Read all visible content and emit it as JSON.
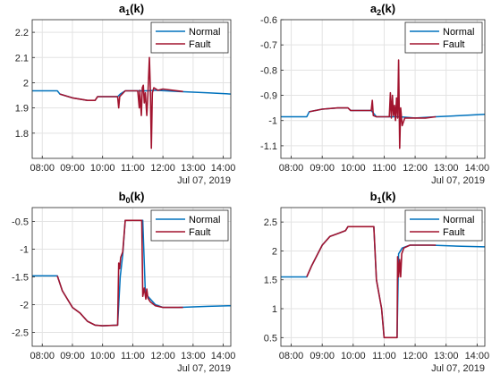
{
  "chart_data": [
    {
      "type": "line",
      "title_main": "a",
      "title_sub": "1",
      "title_rest": "(k)",
      "xticks": [
        "08:00",
        "09:00",
        "10:00",
        "11:00",
        "12:00",
        "13:00",
        "14:00"
      ],
      "xlabel": "Jul 07, 2019",
      "yticks": [
        "1.8",
        "1.9",
        "2",
        "2.1",
        "2.2"
      ],
      "ytick_values": [
        1.8,
        1.9,
        2.0,
        2.1,
        2.2
      ],
      "xlim": [
        "07:40",
        "14:15"
      ],
      "ylim": [
        1.7,
        2.25
      ],
      "grid": true,
      "legend_position": "top-right",
      "series": [
        {
          "name": "Normal",
          "color": "#0072BD",
          "points": [
            [
              "07:40",
              1.968
            ],
            [
              "08:30",
              1.968
            ],
            [
              "08:35",
              1.955
            ],
            [
              "09:00",
              1.94
            ],
            [
              "09:30",
              1.93
            ],
            [
              "09:45",
              1.93
            ],
            [
              "09:50",
              1.945
            ],
            [
              "10:30",
              1.945
            ],
            [
              "10:35",
              1.955
            ],
            [
              "10:45",
              1.968
            ],
            [
              "11:30",
              1.968
            ],
            [
              "11:45",
              1.97
            ],
            [
              "12:30",
              1.965
            ],
            [
              "13:30",
              1.96
            ],
            [
              "14:15",
              1.955
            ]
          ]
        },
        {
          "name": "Fault",
          "color": "#A2142F",
          "points": [
            [
              "08:35",
              1.955
            ],
            [
              "09:00",
              1.94
            ],
            [
              "09:30",
              1.93
            ],
            [
              "09:45",
              1.93
            ],
            [
              "09:50",
              1.945
            ],
            [
              "10:30",
              1.945
            ],
            [
              "10:32",
              1.9
            ],
            [
              "10:34",
              1.945
            ],
            [
              "10:45",
              1.968
            ],
            [
              "11:10",
              1.968
            ],
            [
              "11:13",
              1.9
            ],
            [
              "11:14",
              1.97
            ],
            [
              "11:17",
              1.87
            ],
            [
              "11:19",
              1.98
            ],
            [
              "11:21",
              1.99
            ],
            [
              "11:23",
              1.92
            ],
            [
              "11:25",
              1.96
            ],
            [
              "11:28",
              1.87
            ],
            [
              "11:30",
              1.95
            ],
            [
              "11:33",
              2.1
            ],
            [
              "11:35",
              1.97
            ],
            [
              "11:37",
              1.74
            ],
            [
              "11:39",
              1.96
            ],
            [
              "11:42",
              1.98
            ],
            [
              "11:50",
              1.97
            ],
            [
              "12:00",
              1.975
            ],
            [
              "12:20",
              1.97
            ],
            [
              "12:40",
              1.965
            ]
          ]
        }
      ]
    },
    {
      "type": "line",
      "title_main": "a",
      "title_sub": "2",
      "title_rest": "(k)",
      "xticks": [
        "08:00",
        "09:00",
        "10:00",
        "11:00",
        "12:00",
        "13:00",
        "14:00"
      ],
      "xlabel": "Jul 07, 2019",
      "yticks": [
        "-1.1",
        "-1",
        "-0.9",
        "-0.8",
        "-0.7",
        "-0.6"
      ],
      "ytick_values": [
        -1.1,
        -1.0,
        -0.9,
        -0.8,
        -0.7,
        -0.6
      ],
      "xlim": [
        "07:40",
        "14:15"
      ],
      "ylim": [
        -1.15,
        -0.6
      ],
      "grid": true,
      "legend_position": "top-right",
      "series": [
        {
          "name": "Normal",
          "color": "#0072BD",
          "points": [
            [
              "07:40",
              -0.985
            ],
            [
              "08:30",
              -0.985
            ],
            [
              "08:35",
              -0.965
            ],
            [
              "09:00",
              -0.955
            ],
            [
              "09:30",
              -0.95
            ],
            [
              "09:50",
              -0.95
            ],
            [
              "09:55",
              -0.96
            ],
            [
              "10:35",
              -0.96
            ],
            [
              "10:45",
              -0.985
            ],
            [
              "11:30",
              -0.985
            ],
            [
              "12:00",
              -0.99
            ],
            [
              "12:40",
              -0.985
            ],
            [
              "13:30",
              -0.98
            ],
            [
              "14:15",
              -0.975
            ]
          ]
        },
        {
          "name": "Fault",
          "color": "#A2142F",
          "points": [
            [
              "08:35",
              -0.965
            ],
            [
              "09:00",
              -0.955
            ],
            [
              "09:30",
              -0.95
            ],
            [
              "09:50",
              -0.95
            ],
            [
              "09:55",
              -0.96
            ],
            [
              "10:35",
              -0.96
            ],
            [
              "10:37",
              -0.92
            ],
            [
              "10:39",
              -0.98
            ],
            [
              "10:45",
              -0.985
            ],
            [
              "11:10",
              -0.985
            ],
            [
              "11:12",
              -0.89
            ],
            [
              "11:14",
              -0.99
            ],
            [
              "11:16",
              -0.9
            ],
            [
              "11:18",
              -0.98
            ],
            [
              "11:20",
              -0.94
            ],
            [
              "11:22",
              -1.0
            ],
            [
              "11:24",
              -0.91
            ],
            [
              "11:26",
              -0.99
            ],
            [
              "11:28",
              -0.76
            ],
            [
              "11:30",
              -1.11
            ],
            [
              "11:32",
              -0.95
            ],
            [
              "11:35",
              -1.02
            ],
            [
              "11:40",
              -0.99
            ],
            [
              "12:00",
              -0.99
            ],
            [
              "12:20",
              -0.99
            ],
            [
              "12:40",
              -0.985
            ]
          ]
        }
      ]
    },
    {
      "type": "line",
      "title_main": "b",
      "title_sub": "0",
      "title_rest": "(k)",
      "xticks": [
        "08:00",
        "09:00",
        "10:00",
        "11:00",
        "12:00",
        "13:00",
        "14:00"
      ],
      "xlabel": "Jul 07, 2019",
      "yticks": [
        "-2.5",
        "-2",
        "-1.5",
        "-1",
        "-0.5"
      ],
      "ytick_values": [
        -2.5,
        -2.0,
        -1.5,
        -1.0,
        -0.5
      ],
      "xlim": [
        "07:40",
        "14:15"
      ],
      "ylim": [
        -2.75,
        -0.25
      ],
      "grid": true,
      "legend_position": "top-right",
      "series": [
        {
          "name": "Normal",
          "color": "#0072BD",
          "points": [
            [
              "07:40",
              -1.48
            ],
            [
              "08:30",
              -1.48
            ],
            [
              "08:40",
              -1.75
            ],
            [
              "09:00",
              -2.05
            ],
            [
              "09:15",
              -2.15
            ],
            [
              "09:30",
              -2.3
            ],
            [
              "09:45",
              -2.37
            ],
            [
              "10:00",
              -2.38
            ],
            [
              "10:30",
              -2.37
            ],
            [
              "10:35",
              -1.5
            ],
            [
              "10:40",
              -1.1
            ],
            [
              "10:45",
              -0.48
            ],
            [
              "11:20",
              -0.48
            ],
            [
              "11:25",
              -1.8
            ],
            [
              "11:35",
              -1.9
            ],
            [
              "11:45",
              -2.0
            ],
            [
              "12:00",
              -2.05
            ],
            [
              "12:30",
              -2.05
            ],
            [
              "13:00",
              -2.04
            ],
            [
              "13:30",
              -2.03
            ],
            [
              "14:15",
              -2.02
            ]
          ]
        },
        {
          "name": "Fault",
          "color": "#A2142F",
          "points": [
            [
              "08:30",
              -1.48
            ],
            [
              "08:40",
              -1.75
            ],
            [
              "09:00",
              -2.05
            ],
            [
              "09:15",
              -2.15
            ],
            [
              "09:30",
              -2.3
            ],
            [
              "09:45",
              -2.37
            ],
            [
              "10:00",
              -2.38
            ],
            [
              "10:30",
              -2.37
            ],
            [
              "10:32",
              -1.25
            ],
            [
              "10:34",
              -1.35
            ],
            [
              "10:36",
              -1.15
            ],
            [
              "10:40",
              -1.05
            ],
            [
              "10:45",
              -0.48
            ],
            [
              "11:18",
              -0.48
            ],
            [
              "11:20",
              -1.85
            ],
            [
              "11:23",
              -1.7
            ],
            [
              "11:26",
              -1.9
            ],
            [
              "11:28",
              -1.72
            ],
            [
              "11:30",
              -1.88
            ],
            [
              "11:35",
              -1.95
            ],
            [
              "11:45",
              -2.02
            ],
            [
              "12:00",
              -2.05
            ],
            [
              "12:30",
              -2.05
            ],
            [
              "12:40",
              -2.05
            ]
          ]
        }
      ]
    },
    {
      "type": "line",
      "title_main": "b",
      "title_sub": "1",
      "title_rest": "(k)",
      "xticks": [
        "08:00",
        "09:00",
        "10:00",
        "11:00",
        "12:00",
        "13:00",
        "14:00"
      ],
      "xlabel": "Jul 07, 2019",
      "yticks": [
        "0.5",
        "1",
        "1.5",
        "2",
        "2.5"
      ],
      "ytick_values": [
        0.5,
        1.0,
        1.5,
        2.0,
        2.5
      ],
      "xlim": [
        "07:40",
        "14:15"
      ],
      "ylim": [
        0.35,
        2.75
      ],
      "grid": true,
      "legend_position": "top-right",
      "series": [
        {
          "name": "Normal",
          "color": "#0072BD",
          "points": [
            [
              "07:40",
              1.55
            ],
            [
              "08:30",
              1.55
            ],
            [
              "08:40",
              1.75
            ],
            [
              "09:00",
              2.1
            ],
            [
              "09:15",
              2.25
            ],
            [
              "09:30",
              2.3
            ],
            [
              "09:45",
              2.35
            ],
            [
              "09:50",
              2.42
            ],
            [
              "10:40",
              2.42
            ],
            [
              "10:45",
              1.5
            ],
            [
              "10:55",
              1.0
            ],
            [
              "11:00",
              0.5
            ],
            [
              "11:25",
              0.5
            ],
            [
              "11:28",
              1.95
            ],
            [
              "11:35",
              2.05
            ],
            [
              "11:50",
              2.1
            ],
            [
              "12:30",
              2.1
            ],
            [
              "13:30",
              2.08
            ],
            [
              "14:15",
              2.07
            ]
          ]
        },
        {
          "name": "Fault",
          "color": "#A2142F",
          "points": [
            [
              "08:30",
              1.55
            ],
            [
              "08:40",
              1.75
            ],
            [
              "09:00",
              2.1
            ],
            [
              "09:15",
              2.25
            ],
            [
              "09:30",
              2.3
            ],
            [
              "09:45",
              2.35
            ],
            [
              "09:50",
              2.42
            ],
            [
              "10:40",
              2.42
            ],
            [
              "10:45",
              1.5
            ],
            [
              "10:55",
              1.0
            ],
            [
              "11:00",
              0.5
            ],
            [
              "11:25",
              0.5
            ],
            [
              "11:26",
              1.9
            ],
            [
              "11:28",
              1.55
            ],
            [
              "11:30",
              1.85
            ],
            [
              "11:32",
              1.55
            ],
            [
              "11:34",
              1.95
            ],
            [
              "11:38",
              2.05
            ],
            [
              "11:50",
              2.1
            ],
            [
              "12:30",
              2.1
            ],
            [
              "12:40",
              2.1
            ]
          ]
        }
      ]
    }
  ]
}
